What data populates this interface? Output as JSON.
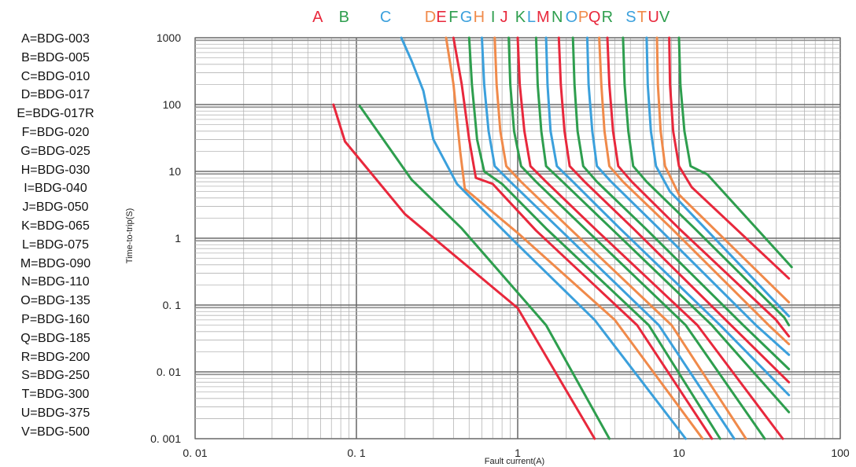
{
  "chart_data": {
    "type": "line",
    "title": "",
    "xlabel": "Fault current(A)",
    "ylabel": "Time-to-trip(S)",
    "xscale": "log",
    "yscale": "log",
    "xlim": [
      0.01,
      100
    ],
    "ylim": [
      0.001,
      1000
    ],
    "grid": true,
    "x_ticks": [
      "0. 01",
      "0. 1",
      "1",
      "10",
      "100"
    ],
    "y_ticks": [
      "1000",
      "100",
      "10",
      "1",
      "0. 1",
      "0. 01",
      "0. 001"
    ],
    "legend": [
      {
        "key": "A",
        "part": "BDG-003",
        "label": "A=BDG-003"
      },
      {
        "key": "B",
        "part": "BDG-005",
        "label": "B=BDG-005"
      },
      {
        "key": "C",
        "part": "BDG-010",
        "label": "C=BDG-010"
      },
      {
        "key": "D",
        "part": "BDG-017",
        "label": "D=BDG-017"
      },
      {
        "key": "E",
        "part": "BDG-017R",
        "label": "E=BDG-017R"
      },
      {
        "key": "F",
        "part": "BDG-020",
        "label": "F=BDG-020"
      },
      {
        "key": "G",
        "part": "BDG-025",
        "label": "G=BDG-025"
      },
      {
        "key": "H",
        "part": "BDG-030",
        "label": "H=BDG-030"
      },
      {
        "key": "I",
        "part": "BDG-040",
        "label": "I=BDG-040"
      },
      {
        "key": "J",
        "part": "BDG-050",
        "label": "J=BDG-050"
      },
      {
        "key": "K",
        "part": "BDG-065",
        "label": "K=BDG-065"
      },
      {
        "key": "L",
        "part": "BDG-075",
        "label": "L=BDG-075"
      },
      {
        "key": "M",
        "part": "BDG-090",
        "label": "M=BDG-090"
      },
      {
        "key": "N",
        "part": "BDG-110",
        "label": "N=BDG-110"
      },
      {
        "key": "O",
        "part": "BDG-135",
        "label": "O=BDG-135"
      },
      {
        "key": "P",
        "part": "BDG-160",
        "label": "P=BDG-160"
      },
      {
        "key": "Q",
        "part": "BDG-185",
        "label": "Q=BDG-185"
      },
      {
        "key": "R",
        "part": "BDG-200",
        "label": "R=BDG-200"
      },
      {
        "key": "S",
        "part": "BDG-250",
        "label": "S=BDG-250"
      },
      {
        "key": "T",
        "part": "BDG-300",
        "label": "T=BDG-300"
      },
      {
        "key": "U",
        "part": "BDG-375",
        "label": "U=BDG-375"
      },
      {
        "key": "V",
        "part": "BDG-500",
        "label": "V=BDG-500"
      }
    ],
    "series": [
      {
        "name": "A",
        "color": "#e8283c",
        "points": [
          [
            0.072,
            100
          ],
          [
            0.085,
            28
          ],
          [
            0.2,
            2.3
          ],
          [
            1.0,
            0.09
          ],
          [
            3.0,
            0.001
          ]
        ]
      },
      {
        "name": "B",
        "color": "#2e9e4e",
        "points": [
          [
            0.105,
            95
          ],
          [
            0.22,
            7.5
          ],
          [
            0.45,
            1.4
          ],
          [
            1.5,
            0.05
          ],
          [
            3.7,
            0.001
          ]
        ]
      },
      {
        "name": "C",
        "color": "#3ba0dc",
        "points": [
          [
            0.19,
            1000
          ],
          [
            0.22,
            450
          ],
          [
            0.26,
            160
          ],
          [
            0.3,
            30
          ],
          [
            0.42,
            6.5
          ],
          [
            1.0,
            0.8
          ],
          [
            3.0,
            0.06
          ],
          [
            11,
            0.001
          ]
        ]
      },
      {
        "name": "D",
        "color": "#f08a4a",
        "points": [
          [
            0.36,
            1000
          ],
          [
            0.4,
            200
          ],
          [
            0.44,
            20
          ],
          [
            0.47,
            5.5
          ],
          [
            1.0,
            1.2
          ],
          [
            4.0,
            0.06
          ],
          [
            14,
            0.001
          ]
        ]
      },
      {
        "name": "E",
        "color": "#e8283c",
        "points": [
          [
            0.4,
            1000
          ],
          [
            0.45,
            200
          ],
          [
            0.5,
            30
          ],
          [
            0.55,
            8
          ],
          [
            0.7,
            6.5
          ],
          [
            1.3,
            1.3
          ],
          [
            5.5,
            0.05
          ],
          [
            16,
            0.001
          ]
        ]
      },
      {
        "name": "F",
        "color": "#2e9e4e",
        "points": [
          [
            0.5,
            1000
          ],
          [
            0.52,
            200
          ],
          [
            0.56,
            30
          ],
          [
            0.62,
            10
          ],
          [
            0.8,
            6.5
          ],
          [
            1.5,
            1.4
          ],
          [
            6.5,
            0.05
          ],
          [
            18,
            0.001
          ]
        ]
      },
      {
        "name": "G",
        "color": "#3ba0dc",
        "points": [
          [
            0.6,
            1000
          ],
          [
            0.62,
            200
          ],
          [
            0.66,
            40
          ],
          [
            0.72,
            12
          ],
          [
            0.9,
            7
          ],
          [
            1.8,
            1.4
          ],
          [
            7.5,
            0.05
          ],
          [
            22,
            0.001
          ]
        ]
      },
      {
        "name": "H",
        "color": "#f08a4a",
        "points": [
          [
            0.72,
            1000
          ],
          [
            0.74,
            200
          ],
          [
            0.78,
            40
          ],
          [
            0.85,
            12
          ],
          [
            1.05,
            7
          ],
          [
            2.1,
            1.4
          ],
          [
            9,
            0.05
          ],
          [
            26,
            0.001
          ]
        ]
      },
      {
        "name": "I",
        "color": "#2e9e4e",
        "points": [
          [
            0.88,
            1000
          ],
          [
            0.9,
            200
          ],
          [
            0.95,
            40
          ],
          [
            1.05,
            12
          ],
          [
            1.3,
            7
          ],
          [
            2.6,
            1.4
          ],
          [
            11,
            0.05
          ],
          [
            34,
            0.001
          ]
        ]
      },
      {
        "name": "J",
        "color": "#e8283c",
        "points": [
          [
            1.0,
            1000
          ],
          [
            1.03,
            200
          ],
          [
            1.1,
            40
          ],
          [
            1.2,
            12
          ],
          [
            1.5,
            7
          ],
          [
            3.0,
            1.4
          ],
          [
            13,
            0.05
          ],
          [
            44,
            0.001
          ]
        ]
      },
      {
        "name": "K",
        "color": "#2e9e4e",
        "points": [
          [
            1.3,
            1000
          ],
          [
            1.33,
            200
          ],
          [
            1.4,
            40
          ],
          [
            1.5,
            12
          ],
          [
            1.9,
            7
          ],
          [
            3.8,
            1.4
          ],
          [
            16,
            0.05
          ],
          [
            48,
            0.0025
          ]
        ]
      },
      {
        "name": "L",
        "color": "#3ba0dc",
        "points": [
          [
            1.5,
            1000
          ],
          [
            1.53,
            200
          ],
          [
            1.6,
            40
          ],
          [
            1.75,
            12
          ],
          [
            2.2,
            7
          ],
          [
            4.3,
            1.4
          ],
          [
            18,
            0.05
          ],
          [
            48,
            0.0045
          ]
        ]
      },
      {
        "name": "M",
        "color": "#e8283c",
        "points": [
          [
            1.8,
            1000
          ],
          [
            1.85,
            200
          ],
          [
            1.95,
            40
          ],
          [
            2.1,
            12
          ],
          [
            2.6,
            7
          ],
          [
            5.2,
            1.4
          ],
          [
            21,
            0.05
          ],
          [
            48,
            0.007
          ]
        ]
      },
      {
        "name": "N",
        "color": "#2e9e4e",
        "points": [
          [
            2.2,
            1000
          ],
          [
            2.25,
            200
          ],
          [
            2.35,
            40
          ],
          [
            2.55,
            12
          ],
          [
            3.1,
            7
          ],
          [
            6.2,
            1.4
          ],
          [
            25,
            0.05
          ],
          [
            48,
            0.011
          ]
        ]
      },
      {
        "name": "O",
        "color": "#3ba0dc",
        "points": [
          [
            2.7,
            1000
          ],
          [
            2.75,
            200
          ],
          [
            2.9,
            40
          ],
          [
            3.1,
            12
          ],
          [
            3.8,
            7
          ],
          [
            7.5,
            1.4
          ],
          [
            30,
            0.05
          ],
          [
            48,
            0.018
          ]
        ]
      },
      {
        "name": "P",
        "color": "#f08a4a",
        "points": [
          [
            3.2,
            1000
          ],
          [
            3.3,
            200
          ],
          [
            3.45,
            40
          ],
          [
            3.7,
            12
          ],
          [
            4.5,
            7
          ],
          [
            9,
            1.4
          ],
          [
            36,
            0.05
          ],
          [
            48,
            0.026
          ]
        ]
      },
      {
        "name": "Q",
        "color": "#e8283c",
        "points": [
          [
            3.6,
            1000
          ],
          [
            3.7,
            200
          ],
          [
            3.9,
            40
          ],
          [
            4.2,
            12
          ],
          [
            5.1,
            7
          ],
          [
            10,
            1.4
          ],
          [
            40,
            0.06
          ],
          [
            48,
            0.034
          ]
        ]
      },
      {
        "name": "R",
        "color": "#2e9e4e",
        "points": [
          [
            4.5,
            1000
          ],
          [
            4.6,
            200
          ],
          [
            4.85,
            40
          ],
          [
            5.2,
            12
          ],
          [
            6.3,
            7
          ],
          [
            12.5,
            1.4
          ],
          [
            45,
            0.065
          ],
          [
            48,
            0.05
          ]
        ]
      },
      {
        "name": "S",
        "color": "#3ba0dc",
        "points": [
          [
            6.3,
            1000
          ],
          [
            6.4,
            200
          ],
          [
            6.7,
            40
          ],
          [
            7.2,
            12
          ],
          [
            8.8,
            5
          ],
          [
            48,
            0.068
          ]
        ]
      },
      {
        "name": "T",
        "color": "#f08a4a",
        "points": [
          [
            7.3,
            1000
          ],
          [
            7.4,
            200
          ],
          [
            7.7,
            40
          ],
          [
            8.2,
            12
          ],
          [
            10,
            4.5
          ],
          [
            48,
            0.11
          ]
        ]
      },
      {
        "name": "U",
        "color": "#e8283c",
        "points": [
          [
            8.7,
            1000
          ],
          [
            8.8,
            200
          ],
          [
            9.2,
            40
          ],
          [
            10,
            12
          ],
          [
            12,
            5.8
          ],
          [
            48,
            0.25
          ]
        ]
      },
      {
        "name": "V",
        "color": "#2e9e4e",
        "points": [
          [
            10,
            1000
          ],
          [
            10.2,
            200
          ],
          [
            10.8,
            40
          ],
          [
            11.8,
            12
          ],
          [
            15,
            9
          ],
          [
            50,
            0.37
          ]
        ]
      }
    ]
  }
}
